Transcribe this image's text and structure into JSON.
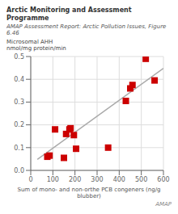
{
  "chart_data": {
    "type": "scatter",
    "title": "Arctic Monitoring and Assessment Programme",
    "subtitle": "AMAP Assessment Report: Arctic Pollution Issues, Figure 6.46",
    "ylabel": [
      "Microsomal AHH",
      "nmol/mg protein/min"
    ],
    "xlabel": "Sum of mono- and non-orthe PCB congeners (ng/g blubber)",
    "annotations": [
      "AMAP"
    ],
    "xlim": [
      0,
      600
    ],
    "ylim": [
      0.0,
      0.5
    ],
    "xticks": [
      0,
      100,
      200,
      300,
      400,
      500,
      600
    ],
    "yticks": [
      {
        "value": 0.0,
        "label": "0.0"
      },
      0.1,
      0.2,
      0.3,
      0.4,
      0.5
    ],
    "grid": true,
    "series": [
      {
        "type": "line",
        "color": "#aaaaaa",
        "x": [
          30,
          600
        ],
        "values": [
          0.048,
          0.448
        ]
      },
      {
        "type": "scatter",
        "color": "#cc0000",
        "marker": "square",
        "x": [
          75,
          85,
          110,
          150,
          160,
          175,
          180,
          195,
          205,
          350,
          430,
          450,
          460,
          520,
          560
        ],
        "values": [
          0.06,
          0.065,
          0.18,
          0.055,
          0.16,
          0.18,
          0.185,
          0.155,
          0.095,
          0.1,
          0.305,
          0.36,
          0.375,
          0.49,
          0.395
        ]
      }
    ]
  }
}
